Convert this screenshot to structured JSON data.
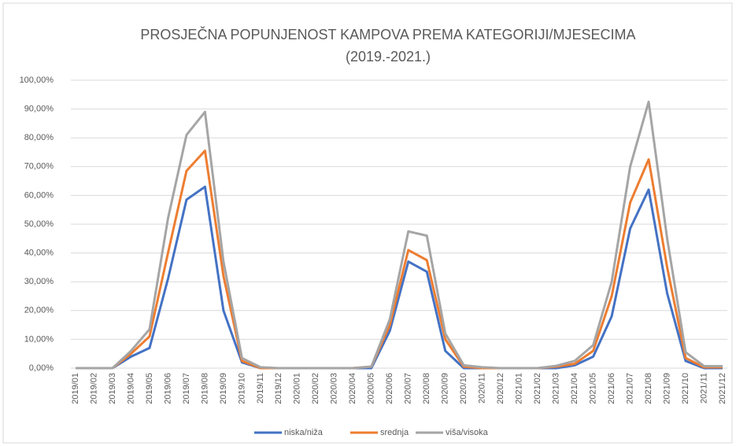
{
  "chart_data": {
    "type": "line",
    "title": "PROSJEČNA POPUNJENOST KAMPOVA PREMA KATEGORIJI/MJESECIMA",
    "subtitle": "(2019.-2021.)",
    "categories": [
      "2019/01",
      "2019/02",
      "2019/03",
      "2019/04",
      "2019/05",
      "2019/06",
      "2019/07",
      "2019/08",
      "2019/09",
      "2019/10",
      "2019/11",
      "2019/12",
      "2020/01",
      "2020/02",
      "2020/03",
      "2020/04",
      "2020/05",
      "2020/06",
      "2020/07",
      "2020/08",
      "2020/09",
      "2020/10",
      "2020/11",
      "2020/12",
      "2021/01",
      "2021/02",
      "2021/03",
      "2021/04",
      "2021/05",
      "2021/06",
      "2021/07",
      "2021/08",
      "2021/09",
      "2021/10",
      "2021/11",
      "2021/12"
    ],
    "series": [
      {
        "name": "niska/niža",
        "color": "#4472c4",
        "values": [
          0,
          0,
          0,
          4,
          7,
          31,
          58.5,
          63,
          20,
          2,
          0,
          0,
          0,
          0,
          0,
          0,
          0,
          13,
          37,
          33.5,
          6,
          0,
          0,
          0,
          0,
          0,
          0,
          1,
          4,
          18,
          48.5,
          62,
          26,
          2.5,
          0,
          0
        ]
      },
      {
        "name": "srednja",
        "color": "#ed7d31",
        "values": [
          0,
          0,
          0,
          5,
          11,
          40,
          68.5,
          75.5,
          32,
          2.5,
          0,
          0,
          0,
          0,
          0,
          0,
          0.5,
          15,
          41,
          37.5,
          10,
          0.5,
          0,
          0,
          0,
          0,
          0.5,
          1.5,
          6,
          25,
          57.5,
          72.5,
          35,
          3.5,
          0.3,
          0.3
        ]
      },
      {
        "name": "viša/visoka",
        "color": "#a5a5a5",
        "values": [
          0,
          0,
          0,
          6,
          13.5,
          52,
          81,
          89,
          37,
          3.5,
          0.3,
          0,
          0,
          0,
          0,
          0,
          0.5,
          17,
          47.5,
          46,
          12,
          1,
          0.3,
          0,
          0,
          0,
          0.8,
          2.5,
          8,
          30,
          70,
          92.5,
          45,
          5.5,
          0.7,
          0.7
        ]
      }
    ],
    "ylim": [
      0,
      100
    ],
    "yticks": [
      {
        "value": 0,
        "label": "0,00%"
      },
      {
        "value": 10,
        "label": "10,00%"
      },
      {
        "value": 20,
        "label": "20,00%"
      },
      {
        "value": 30,
        "label": "30,00%"
      },
      {
        "value": 40,
        "label": "40,00%"
      },
      {
        "value": 50,
        "label": "50,00%"
      },
      {
        "value": 60,
        "label": "60,00%"
      },
      {
        "value": 70,
        "label": "70,00%"
      },
      {
        "value": 80,
        "label": "80,00%"
      },
      {
        "value": 90,
        "label": "90,00%"
      },
      {
        "value": 100,
        "label": "100,00%"
      }
    ],
    "grid": true,
    "legend": "bottom"
  }
}
